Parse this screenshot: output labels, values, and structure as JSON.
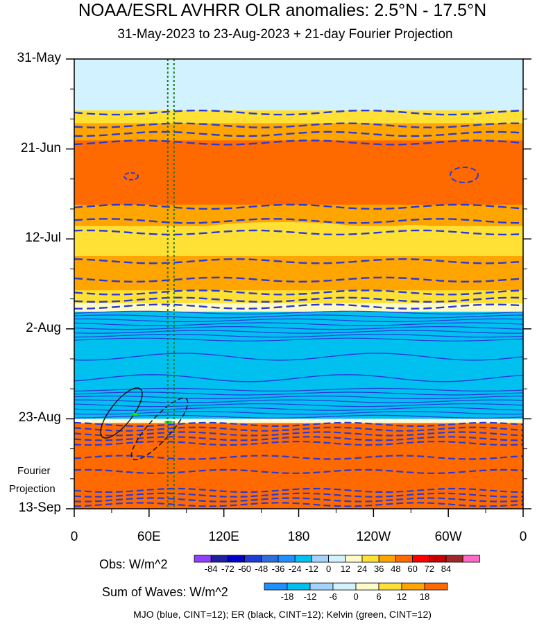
{
  "title": "NOAA/ESRL AVHRR OLR anomalies: 2.5°N - 17.5°N",
  "subtitle": "31-May-2023 to 23-Aug-2023 + 21-day Fourier Projection",
  "projection_label_line1": "Fourier",
  "projection_label_line2": "Projection",
  "footnote": "MJO (blue, CINT=12); ER (black, CINT=12); Kelvin (green, CINT=12)",
  "colorbar_obs": {
    "title": "Obs: W/m^2",
    "ticks": [
      "-84",
      "-72",
      "-60",
      "-48",
      "-36",
      "-24",
      "-12",
      "0",
      "12",
      "24",
      "36",
      "48",
      "60",
      "72",
      "84"
    ],
    "colors": [
      "#9040ff",
      "#1f1f9f",
      "#0000c8",
      "#1e3cd6",
      "#2f6edc",
      "#1e90ff",
      "#00c0f0",
      "#a4d2ff",
      "#d2f2ff",
      "#fffbc8",
      "#ffe135",
      "#ffa500",
      "#ff6a00",
      "#ff0000",
      "#c80000",
      "#a02828",
      "#ff69c8"
    ]
  },
  "colorbar_waves": {
    "title": "Sum of Waves: W/m^2",
    "ticks": [
      "-18",
      "-12",
      "-6",
      "0",
      "6",
      "12",
      "18"
    ],
    "colors": [
      "#1e90ff",
      "#00c0f0",
      "#a4d2ff",
      "#d2f2ff",
      "#fffbc8",
      "#ffe135",
      "#ffa500",
      "#ff6a00"
    ]
  },
  "chart_data": {
    "type": "heatmap",
    "title": "NOAA/ESRL AVHRR OLR anomalies: 2.5°N - 17.5°N",
    "subtitle": "31-May-2023 to 23-Aug-2023 + 21-day Fourier Projection",
    "x_ticks": [
      {
        "lon": 0,
        "label": "0"
      },
      {
        "lon": 60,
        "label": "60E"
      },
      {
        "lon": 120,
        "label": "120E"
      },
      {
        "lon": 180,
        "label": "180"
      },
      {
        "lon": 240,
        "label": "120W"
      },
      {
        "lon": 300,
        "label": "60W"
      },
      {
        "lon": 360,
        "label": "0"
      }
    ],
    "xlim": [
      0,
      360
    ],
    "y_ticks": [
      {
        "day": 0,
        "label": "31-May"
      },
      {
        "day": 21,
        "label": "21-Jun"
      },
      {
        "day": 42,
        "label": "12-Jul"
      },
      {
        "day": 63,
        "label": "2-Aug"
      },
      {
        "day": 84,
        "label": "23-Aug"
      },
      {
        "day": 105,
        "label": "13-Sep"
      }
    ],
    "ylim_days": [
      0,
      105
    ],
    "observed_end_day": 84,
    "bands": [
      {
        "day_start": 0,
        "day_end": 12,
        "value": -6
      },
      {
        "day_start": 12,
        "day_end": 15,
        "value": 6
      },
      {
        "day_start": 15,
        "day_end": 19,
        "value": 12
      },
      {
        "day_start": 19,
        "day_end": 34,
        "value": 18
      },
      {
        "day_start": 34,
        "day_end": 39,
        "value": 12
      },
      {
        "day_start": 39,
        "day_end": 46,
        "value": 6
      },
      {
        "day_start": 46,
        "day_end": 54,
        "value": 12
      },
      {
        "day_start": 54,
        "day_end": 57,
        "value": 6
      },
      {
        "day_start": 57,
        "day_end": 59,
        "value": 0
      },
      {
        "day_start": 59,
        "day_end": 84,
        "value": -18
      },
      {
        "day_start": 84,
        "day_end": 85,
        "value": 0
      },
      {
        "day_start": 85,
        "day_end": 105,
        "value": 18
      }
    ],
    "dashed_vertical_lines_lon": [
      75,
      80
    ]
  }
}
